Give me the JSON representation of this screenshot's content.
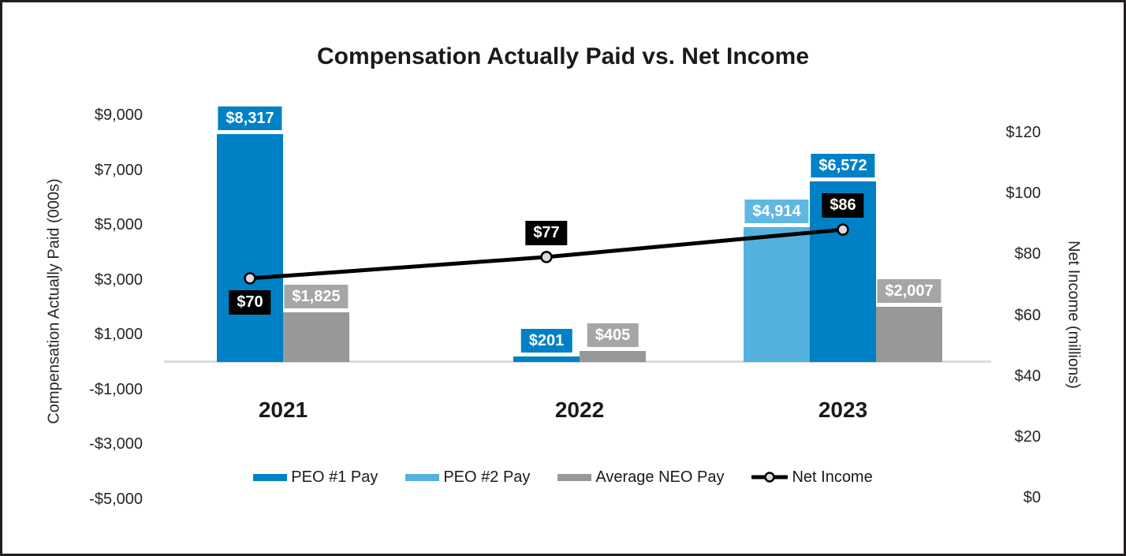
{
  "title": "Compensation Actually Paid vs. Net Income",
  "chart_data": {
    "type": "combo-bar-line",
    "title": "Compensation Actually Paid vs. Net Income",
    "categories": [
      "2021",
      "2022",
      "2023"
    ],
    "series": [
      {
        "name": "PEO #1 Pay",
        "kind": "bar",
        "axis": "left",
        "color": "#0081C6",
        "label_bg": "#0081C6",
        "values": [
          8317,
          201,
          6572
        ],
        "labels": [
          "$8,317",
          "$201",
          "$6,572"
        ]
      },
      {
        "name": "PEO #2 Pay",
        "kind": "bar",
        "axis": "left",
        "color": "#54B1DE",
        "label_bg": "#5FB7E2",
        "values": [
          null,
          null,
          4914
        ],
        "labels": [
          null,
          null,
          "$4,914"
        ]
      },
      {
        "name": "Average NEO Pay",
        "kind": "bar",
        "axis": "left",
        "color": "#97989A",
        "label_bg": "#A5A6A8",
        "values": [
          1825,
          405,
          2007
        ],
        "labels": [
          "$1,825",
          "$405",
          "$2,007"
        ]
      },
      {
        "name": "Net Income",
        "kind": "line",
        "axis": "right",
        "color": "#000000",
        "marker_fill": "#D9D9D9",
        "label_bg": "#000000",
        "values": [
          70,
          77,
          86
        ],
        "labels": [
          "$70",
          "$77",
          "$86"
        ]
      }
    ],
    "left_axis": {
      "title": "Compensation Actually Paid (000s)",
      "min": -5000,
      "max": 9000,
      "ticks": [
        {
          "value": 9000,
          "label": "$9,000"
        },
        {
          "value": 7000,
          "label": "$7,000"
        },
        {
          "value": 5000,
          "label": "$5,000"
        },
        {
          "value": 3000,
          "label": "$3,000"
        },
        {
          "value": 1000,
          "label": "$1,000"
        },
        {
          "value": -1000,
          "label": "-$1,000"
        },
        {
          "value": -3000,
          "label": "-$3,000"
        },
        {
          "value": -5000,
          "label": "-$5,000"
        }
      ]
    },
    "right_axis": {
      "title": "Net Income (millions)",
      "min": 0,
      "max": 120,
      "ticks": [
        {
          "value": 120,
          "label": "$120"
        },
        {
          "value": 100,
          "label": "$100"
        },
        {
          "value": 80,
          "label": "$80"
        },
        {
          "value": 60,
          "label": "$60"
        },
        {
          "value": 40,
          "label": "$40"
        },
        {
          "value": 20,
          "label": "$20"
        },
        {
          "value": 0,
          "label": "$0"
        }
      ]
    },
    "legend_position": "bottom",
    "gridlines": false,
    "baseline_color": "#DBDBDB"
  }
}
